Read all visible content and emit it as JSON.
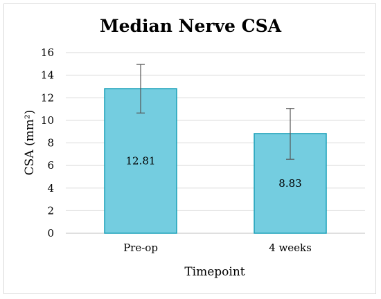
{
  "chart_data": {
    "type": "bar",
    "title": "Median Nerve CSA",
    "xlabel": "Timepoint",
    "ylabel": "CSA (mm²)",
    "categories": [
      "Pre-op",
      "4 weeks"
    ],
    "values": [
      12.81,
      8.83
    ],
    "value_labels": [
      "12.81",
      "8.83"
    ],
    "error_upper": [
      14.95,
      11.05
    ],
    "error_lower": [
      10.65,
      6.55
    ],
    "ylim": [
      0,
      16
    ],
    "yticks": [
      "0",
      "2",
      "4",
      "6",
      "8",
      "10",
      "12",
      "14",
      "16"
    ],
    "grid": true,
    "legend": "none",
    "colors": {
      "bar_fill": "#74cde0",
      "bar_stroke": "#1aa0b8",
      "grid": "#d9d9d9",
      "error": "#555555"
    }
  }
}
